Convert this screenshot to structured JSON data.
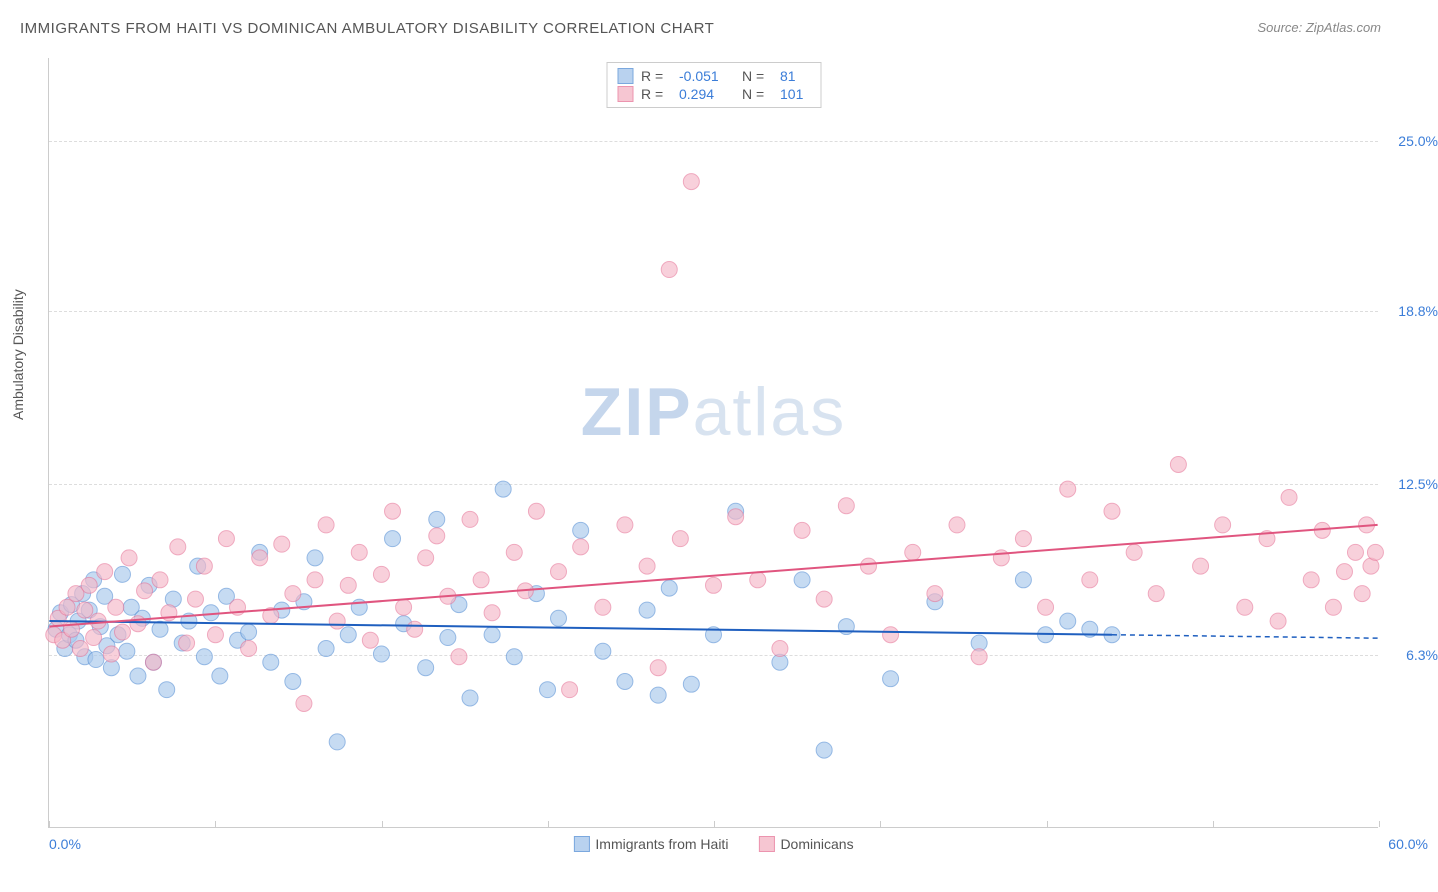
{
  "title": "IMMIGRANTS FROM HAITI VS DOMINICAN AMBULATORY DISABILITY CORRELATION CHART",
  "source": "Source: ZipAtlas.com",
  "y_axis_label": "Ambulatory Disability",
  "watermark": {
    "bold": "ZIP",
    "light": "atlas"
  },
  "chart": {
    "type": "scatter",
    "xlim": [
      0,
      60
    ],
    "ylim": [
      0,
      28
    ],
    "background_color": "#ffffff",
    "grid_color": "#dddddd",
    "grid_dash": "4,4",
    "y_ticks": [
      {
        "value": 25.0,
        "label": "25.0%"
      },
      {
        "value": 18.8,
        "label": "18.8%"
      },
      {
        "value": 12.5,
        "label": "12.5%"
      },
      {
        "value": 6.3,
        "label": "6.3%"
      }
    ],
    "x_ticks_minor": [
      0,
      7.5,
      15,
      22.5,
      30,
      37.5,
      45,
      52.5,
      60
    ],
    "x_tick_left": "0.0%",
    "x_tick_right": "60.0%",
    "series": [
      {
        "id": "haiti",
        "label": "Immigrants from Haiti",
        "R": "-0.051",
        "N": "81",
        "fill": "#a8c8ec",
        "stroke": "#5b93d6",
        "opacity": 0.65,
        "marker_radius": 8,
        "regression": {
          "x1": 0,
          "y1": 7.5,
          "x2": 48,
          "y2": 7.0,
          "solid_end_x": 48,
          "stroke": "#1f5fbf",
          "width": 2
        },
        "points": [
          [
            0.3,
            7.2
          ],
          [
            0.5,
            7.8
          ],
          [
            0.7,
            6.5
          ],
          [
            0.9,
            7.0
          ],
          [
            1.0,
            8.1
          ],
          [
            1.2,
            6.8
          ],
          [
            1.3,
            7.5
          ],
          [
            1.5,
            8.5
          ],
          [
            1.6,
            6.2
          ],
          [
            1.8,
            7.9
          ],
          [
            2.0,
            9.0
          ],
          [
            2.1,
            6.1
          ],
          [
            2.3,
            7.3
          ],
          [
            2.5,
            8.4
          ],
          [
            2.6,
            6.6
          ],
          [
            2.8,
            5.8
          ],
          [
            3.1,
            7.0
          ],
          [
            3.3,
            9.2
          ],
          [
            3.5,
            6.4
          ],
          [
            3.7,
            8.0
          ],
          [
            4.0,
            5.5
          ],
          [
            4.2,
            7.6
          ],
          [
            4.5,
            8.8
          ],
          [
            4.7,
            6.0
          ],
          [
            5.0,
            7.2
          ],
          [
            5.3,
            5.0
          ],
          [
            5.6,
            8.3
          ],
          [
            6.0,
            6.7
          ],
          [
            6.3,
            7.5
          ],
          [
            6.7,
            9.5
          ],
          [
            7.0,
            6.2
          ],
          [
            7.3,
            7.8
          ],
          [
            7.7,
            5.5
          ],
          [
            8.0,
            8.4
          ],
          [
            8.5,
            6.8
          ],
          [
            9.0,
            7.1
          ],
          [
            9.5,
            10.0
          ],
          [
            10.0,
            6.0
          ],
          [
            10.5,
            7.9
          ],
          [
            11.0,
            5.3
          ],
          [
            11.5,
            8.2
          ],
          [
            12.0,
            9.8
          ],
          [
            12.5,
            6.5
          ],
          [
            13.0,
            3.1
          ],
          [
            13.5,
            7.0
          ],
          [
            14.0,
            8.0
          ],
          [
            15.0,
            6.3
          ],
          [
            15.5,
            10.5
          ],
          [
            16.0,
            7.4
          ],
          [
            17.0,
            5.8
          ],
          [
            17.5,
            11.2
          ],
          [
            18.0,
            6.9
          ],
          [
            18.5,
            8.1
          ],
          [
            19.0,
            4.7
          ],
          [
            20.0,
            7.0
          ],
          [
            20.5,
            12.3
          ],
          [
            21.0,
            6.2
          ],
          [
            22.0,
            8.5
          ],
          [
            22.5,
            5.0
          ],
          [
            23.0,
            7.6
          ],
          [
            24.0,
            10.8
          ],
          [
            25.0,
            6.4
          ],
          [
            26.0,
            5.3
          ],
          [
            27.0,
            7.9
          ],
          [
            27.5,
            4.8
          ],
          [
            28.0,
            8.7
          ],
          [
            29.0,
            5.2
          ],
          [
            30.0,
            7.0
          ],
          [
            31.0,
            11.5
          ],
          [
            33.0,
            6.0
          ],
          [
            34.0,
            9.0
          ],
          [
            35.0,
            2.8
          ],
          [
            36.0,
            7.3
          ],
          [
            38.0,
            5.4
          ],
          [
            40.0,
            8.2
          ],
          [
            42.0,
            6.7
          ],
          [
            44.0,
            9.0
          ],
          [
            45.0,
            7.0
          ],
          [
            46.0,
            7.5
          ],
          [
            47.0,
            7.2
          ],
          [
            48.0,
            7.0
          ]
        ]
      },
      {
        "id": "dominican",
        "label": "Dominicans",
        "R": "0.294",
        "N": "101",
        "fill": "#f5b8c8",
        "stroke": "#e87a9c",
        "opacity": 0.65,
        "marker_radius": 8,
        "regression": {
          "x1": 0,
          "y1": 7.3,
          "x2": 60,
          "y2": 11.0,
          "solid_end_x": 60,
          "stroke": "#e0557f",
          "width": 2
        },
        "points": [
          [
            0.2,
            7.0
          ],
          [
            0.4,
            7.6
          ],
          [
            0.6,
            6.8
          ],
          [
            0.8,
            8.0
          ],
          [
            1.0,
            7.2
          ],
          [
            1.2,
            8.5
          ],
          [
            1.4,
            6.5
          ],
          [
            1.6,
            7.9
          ],
          [
            1.8,
            8.8
          ],
          [
            2.0,
            6.9
          ],
          [
            2.2,
            7.5
          ],
          [
            2.5,
            9.3
          ],
          [
            2.8,
            6.3
          ],
          [
            3.0,
            8.0
          ],
          [
            3.3,
            7.1
          ],
          [
            3.6,
            9.8
          ],
          [
            4.0,
            7.4
          ],
          [
            4.3,
            8.6
          ],
          [
            4.7,
            6.0
          ],
          [
            5.0,
            9.0
          ],
          [
            5.4,
            7.8
          ],
          [
            5.8,
            10.2
          ],
          [
            6.2,
            6.7
          ],
          [
            6.6,
            8.3
          ],
          [
            7.0,
            9.5
          ],
          [
            7.5,
            7.0
          ],
          [
            8.0,
            10.5
          ],
          [
            8.5,
            8.0
          ],
          [
            9.0,
            6.5
          ],
          [
            9.5,
            9.8
          ],
          [
            10.0,
            7.7
          ],
          [
            10.5,
            10.3
          ],
          [
            11.0,
            8.5
          ],
          [
            11.5,
            4.5
          ],
          [
            12.0,
            9.0
          ],
          [
            12.5,
            11.0
          ],
          [
            13.0,
            7.5
          ],
          [
            13.5,
            8.8
          ],
          [
            14.0,
            10.0
          ],
          [
            14.5,
            6.8
          ],
          [
            15.0,
            9.2
          ],
          [
            15.5,
            11.5
          ],
          [
            16.0,
            8.0
          ],
          [
            16.5,
            7.2
          ],
          [
            17.0,
            9.8
          ],
          [
            17.5,
            10.6
          ],
          [
            18.0,
            8.4
          ],
          [
            18.5,
            6.2
          ],
          [
            19.0,
            11.2
          ],
          [
            19.5,
            9.0
          ],
          [
            20.0,
            7.8
          ],
          [
            21.0,
            10.0
          ],
          [
            21.5,
            8.6
          ],
          [
            22.0,
            11.5
          ],
          [
            23.0,
            9.3
          ],
          [
            23.5,
            5.0
          ],
          [
            24.0,
            10.2
          ],
          [
            25.0,
            8.0
          ],
          [
            26.0,
            11.0
          ],
          [
            27.0,
            9.5
          ],
          [
            27.5,
            5.8
          ],
          [
            28.0,
            20.3
          ],
          [
            28.5,
            10.5
          ],
          [
            29.0,
            23.5
          ],
          [
            30.0,
            8.8
          ],
          [
            31.0,
            11.3
          ],
          [
            32.0,
            9.0
          ],
          [
            33.0,
            6.5
          ],
          [
            34.0,
            10.8
          ],
          [
            35.0,
            8.3
          ],
          [
            36.0,
            11.7
          ],
          [
            37.0,
            9.5
          ],
          [
            38.0,
            7.0
          ],
          [
            39.0,
            10.0
          ],
          [
            40.0,
            8.5
          ],
          [
            41.0,
            11.0
          ],
          [
            42.0,
            6.2
          ],
          [
            43.0,
            9.8
          ],
          [
            44.0,
            10.5
          ],
          [
            45.0,
            8.0
          ],
          [
            46.0,
            12.3
          ],
          [
            47.0,
            9.0
          ],
          [
            48.0,
            11.5
          ],
          [
            49.0,
            10.0
          ],
          [
            50.0,
            8.5
          ],
          [
            51.0,
            13.2
          ],
          [
            52.0,
            9.5
          ],
          [
            53.0,
            11.0
          ],
          [
            54.0,
            8.0
          ],
          [
            55.0,
            10.5
          ],
          [
            55.5,
            7.5
          ],
          [
            56.0,
            12.0
          ],
          [
            57.0,
            9.0
          ],
          [
            57.5,
            10.8
          ],
          [
            58.0,
            8.0
          ],
          [
            58.5,
            9.3
          ],
          [
            59.0,
            10.0
          ],
          [
            59.3,
            8.5
          ],
          [
            59.5,
            11.0
          ],
          [
            59.7,
            9.5
          ],
          [
            59.9,
            10.0
          ]
        ]
      }
    ]
  },
  "legend_labels": {
    "r_prefix": "R =",
    "n_prefix": "N ="
  }
}
